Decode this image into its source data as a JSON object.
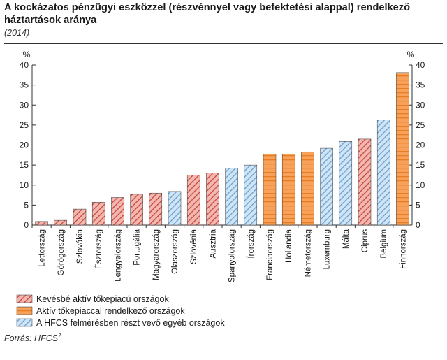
{
  "title": "A kockázatos pénzügyi eszközzel (részvénnyel vagy befektetési alappal) rendelkező háztartások aránya",
  "subtitle": "(2014)",
  "source": "Forrás: HFCS",
  "source_note": "7",
  "colors": {
    "red_fill": "#f2b8b0",
    "red_hatch": "#c8463e",
    "orange_fill": "#f7a15a",
    "orange_hatch": "#e87e22",
    "blue_fill": "#cfe4f5",
    "blue_hatch": "#6a9fcf",
    "axis": "#333333"
  },
  "chart_data": {
    "type": "bar",
    "ylabel_left": "%",
    "ylabel_right": "%",
    "ylim": [
      0,
      40
    ],
    "yticks": [
      0,
      5,
      10,
      15,
      20,
      25,
      30,
      35,
      40
    ],
    "categories": [
      "Lettország",
      "Görögország",
      "Szlovákia",
      "Észtország",
      "Lengyelország",
      "Portugália",
      "Magyarország",
      "Olaszország",
      "Szlovénia",
      "Ausztria",
      "Spanyolország",
      "Írország",
      "Franciaország",
      "Hollandia",
      "Németország",
      "Luxemburg",
      "Málta",
      "Ciprus",
      "Belgium",
      "Finnország"
    ],
    "values": [
      0.9,
      1.2,
      4.0,
      5.7,
      6.9,
      7.7,
      8.0,
      8.4,
      12.5,
      13.0,
      14.2,
      15.0,
      17.7,
      17.7,
      18.3,
      19.2,
      20.9,
      21.5,
      26.3,
      38.1
    ],
    "groups": [
      "red",
      "red",
      "red",
      "red",
      "red",
      "red",
      "red",
      "blue",
      "red",
      "red",
      "blue",
      "blue",
      "orange",
      "orange",
      "orange",
      "blue",
      "blue",
      "red",
      "blue",
      "orange"
    ],
    "legend": [
      {
        "group": "red",
        "label": "Kevésbé aktív tőkepiacú országok"
      },
      {
        "group": "orange",
        "label": "Aktív tőkepiaccal rendelkező országok"
      },
      {
        "group": "blue",
        "label": "A HFCS felmérésben részt vevő egyéb országok"
      }
    ],
    "grid": false,
    "legend_position": "bottom-left"
  }
}
